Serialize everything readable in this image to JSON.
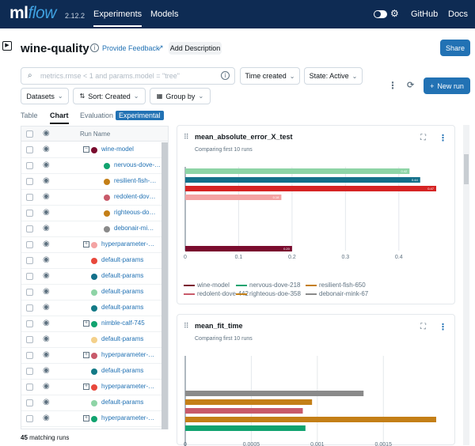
{
  "nav": {
    "logo_ml": "ml",
    "logo_flow": "flow",
    "version": "2.12.2",
    "experiments": "Experiments",
    "models": "Models",
    "github": "GitHub",
    "docs": "Docs"
  },
  "header": {
    "title": "wine-quality",
    "feedback": "Provide Feedback",
    "add_description": "Add Description",
    "share": "Share"
  },
  "filters": {
    "search_placeholder": "metrics.rmse < 1 and params.model = \"tree\"",
    "time_created": "Time created",
    "state": "State: Active",
    "new_run": "New run",
    "datasets": "Datasets",
    "sort": "Sort: Created",
    "group_by": "Group by"
  },
  "tabs": {
    "table": "Table",
    "chart": "Chart",
    "evaluation": "Evaluation",
    "experimental": "Experimental"
  },
  "runs_table": {
    "header": "Run Name",
    "rows": [
      {
        "name": "wine-model",
        "color": "#7a0c2e",
        "indent": 1,
        "group": true
      },
      {
        "name": "nervous-dove-…",
        "color": "#10a36f",
        "indent": 2
      },
      {
        "name": "resilient-fish-…",
        "color": "#c47f17",
        "indent": 2
      },
      {
        "name": "redolent-dov…",
        "color": "#c85a6a",
        "indent": 2
      },
      {
        "name": "righteous-do…",
        "color": "#c47f17",
        "indent": 2
      },
      {
        "name": "debonair-mi…",
        "color": "#8a8a8a",
        "indent": 2
      },
      {
        "name": "hyperparameter-…",
        "color": "#f4a3a3",
        "indent": 1,
        "group": true
      },
      {
        "name": "default-params",
        "color": "#e8483c",
        "indent": 1
      },
      {
        "name": "default-params",
        "color": "#13708a",
        "indent": 1
      },
      {
        "name": "default-params",
        "color": "#8ed4a6",
        "indent": 1
      },
      {
        "name": "default-params",
        "color": "#137a86",
        "indent": 1
      },
      {
        "name": "nimble-calf-745",
        "color": "#10a36f",
        "indent": 1,
        "group": true
      },
      {
        "name": "default-params",
        "color": "#f4d08a",
        "indent": 1
      },
      {
        "name": "hyperparameter-…",
        "color": "#c85a6a",
        "indent": 1,
        "group": true
      },
      {
        "name": "default-params",
        "color": "#137a86",
        "indent": 1
      },
      {
        "name": "hyperparameter-…",
        "color": "#e8483c",
        "indent": 1,
        "group": true
      },
      {
        "name": "default-params",
        "color": "#8ed4a6",
        "indent": 1
      },
      {
        "name": "hyperparameter-…",
        "color": "#10a36f",
        "indent": 1,
        "group": true
      }
    ],
    "matching_count": "45",
    "matching_label": "matching runs"
  },
  "chart_data": [
    {
      "type": "bar",
      "title": "mean_absolute_error_X_test",
      "subtitle": "Comparing first 10 runs",
      "xlim": [
        0,
        0.47
      ],
      "xticks": [
        "0",
        "0.1",
        "0.2",
        "0.3",
        "0.4"
      ],
      "bars": [
        {
          "value": 0.42,
          "label": "0.42",
          "color": "#8ed4a6"
        },
        {
          "value": 0.44,
          "label": "0.44",
          "color": "#13708a"
        },
        {
          "value": 0.47,
          "label": "0.47",
          "color": "#d62424"
        },
        {
          "value": 0.18,
          "label": "0.18",
          "color": "#f4a3a3"
        },
        {
          "value": 0.2,
          "label": "0.20",
          "color": "#7a0c2e"
        }
      ],
      "legend": [
        {
          "name": "wine-model",
          "color": "#7a0c2e"
        },
        {
          "name": "nervous-dove-218",
          "color": "#10a36f"
        },
        {
          "name": "resilient-fish-650",
          "color": "#c47f17"
        },
        {
          "name": "redolent-dove-442",
          "color": "#c85a6a"
        },
        {
          "name": "righteous-doe-358",
          "color": "#c47f17"
        },
        {
          "name": "debonair-mink-67",
          "color": "#8a8a8a"
        }
      ]
    },
    {
      "type": "bar",
      "title": "mean_fit_time",
      "subtitle": "Comparing first 10 runs",
      "xlim": [
        0,
        0.0019
      ],
      "xticks": [
        "0",
        "0.0005",
        "0.001",
        "0.0015"
      ],
      "bars": [
        {
          "value": 0.00135,
          "color": "#8a8a8a"
        },
        {
          "value": 0.00096,
          "color": "#c47f17"
        },
        {
          "value": 0.00089,
          "color": "#c85a6a"
        },
        {
          "value": 0.0019,
          "color": "#c47f17"
        },
        {
          "value": 0.00091,
          "color": "#10a36f"
        }
      ]
    }
  ]
}
